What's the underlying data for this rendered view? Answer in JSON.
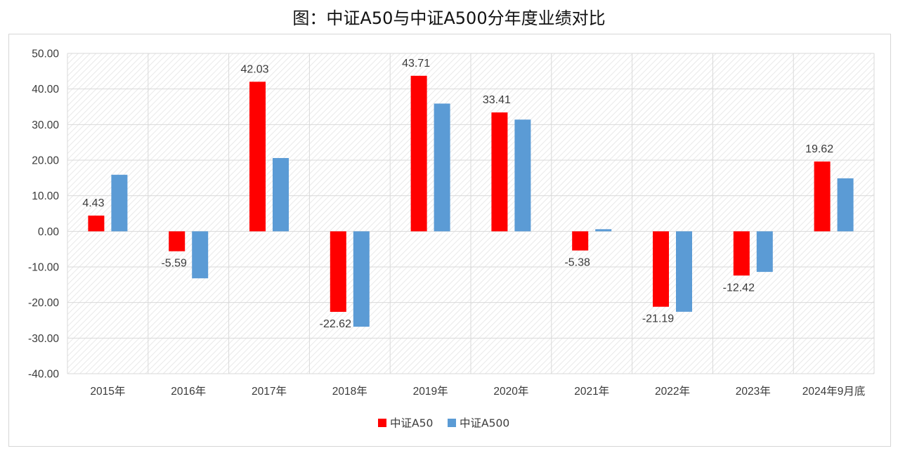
{
  "title": "图：中证A50与中证A500分年度业绩对比",
  "chart_data": {
    "type": "bar",
    "title": "图：中证A50与中证A500分年度业绩对比",
    "xlabel": "",
    "ylabel": "",
    "categories": [
      "2015年",
      "2016年",
      "2017年",
      "2018年",
      "2019年",
      "2020年",
      "2021年",
      "2022年",
      "2023年",
      "2024年9月底"
    ],
    "series": [
      {
        "name": "中证A50",
        "color": "#ff0000",
        "values": [
          4.43,
          -5.59,
          42.03,
          -22.62,
          43.71,
          33.41,
          -5.38,
          -21.19,
          -12.42,
          19.62
        ],
        "labeled": true
      },
      {
        "name": "中证A500",
        "color": "#5b9bd5",
        "values": [
          15.9,
          -13.2,
          20.6,
          -26.8,
          35.9,
          31.4,
          0.6,
          -22.6,
          -11.4,
          14.9
        ],
        "labeled": false
      }
    ],
    "data_labels": [
      "4.43",
      "-5.59",
      "42.03",
      "-22.62",
      "43.71",
      "33.41",
      "-5.38",
      "-21.19",
      "-12.42",
      "19.62"
    ],
    "ylim": [
      -40,
      50
    ],
    "yticks": [
      50,
      40,
      30,
      20,
      10,
      0,
      -10,
      -20,
      -30,
      -40
    ],
    "ytick_labels": [
      "50.00",
      "40.00",
      "30.00",
      "20.00",
      "10.00",
      "0.00",
      "-10.00",
      "-20.00",
      "-30.00",
      "-40.00"
    ],
    "grid": true,
    "legend_position": "bottom"
  }
}
